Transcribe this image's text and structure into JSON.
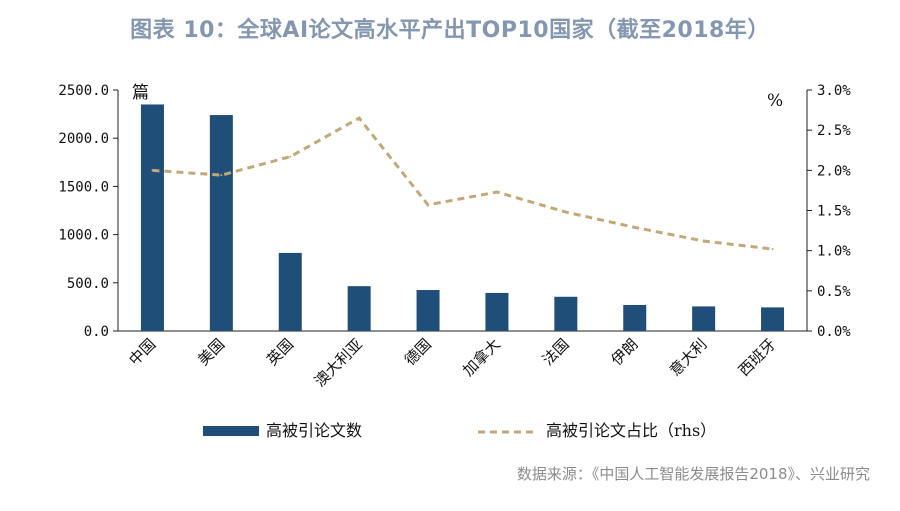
{
  "title": "图表 10：全球AI论文高水平产出TOP10国家（截至2018年）",
  "source": "数据来源：《中国人工智能发展报告2018》、兴业研究",
  "colors": {
    "bar": "#1f4e79",
    "line": "#c5a878",
    "title": "#8497b0"
  },
  "chart_data": {
    "type": "bar",
    "categories": [
      "中国",
      "美国",
      "英国",
      "澳大利亚",
      "德国",
      "加拿大",
      "法国",
      "伊朗",
      "意大利",
      "西班牙"
    ],
    "series": [
      {
        "name": "高被引论文数",
        "type": "bar",
        "axis": "left",
        "values": [
          2350,
          2240,
          810,
          465,
          425,
          395,
          355,
          270,
          255,
          245
        ]
      },
      {
        "name": "高被引论文占比（rhs）",
        "type": "line",
        "axis": "right",
        "style": "dashed",
        "values": [
          2.0,
          1.94,
          2.17,
          2.65,
          1.57,
          1.73,
          1.48,
          1.29,
          1.12,
          1.02
        ]
      }
    ],
    "y_left": {
      "unit": "篇",
      "ylim": [
        0,
        2500
      ],
      "ticks": [
        "2500.0",
        "2000.0",
        "1500.0",
        "1000.0",
        "500.0",
        "0.0"
      ]
    },
    "y_right": {
      "unit": "%",
      "ylim": [
        0,
        3.0
      ],
      "ticks": [
        "3.0%",
        "2.5%",
        "2.0%",
        "1.5%",
        "1.0%",
        "0.5%",
        "0.0%"
      ]
    },
    "grid": false,
    "legend": "bottom"
  }
}
